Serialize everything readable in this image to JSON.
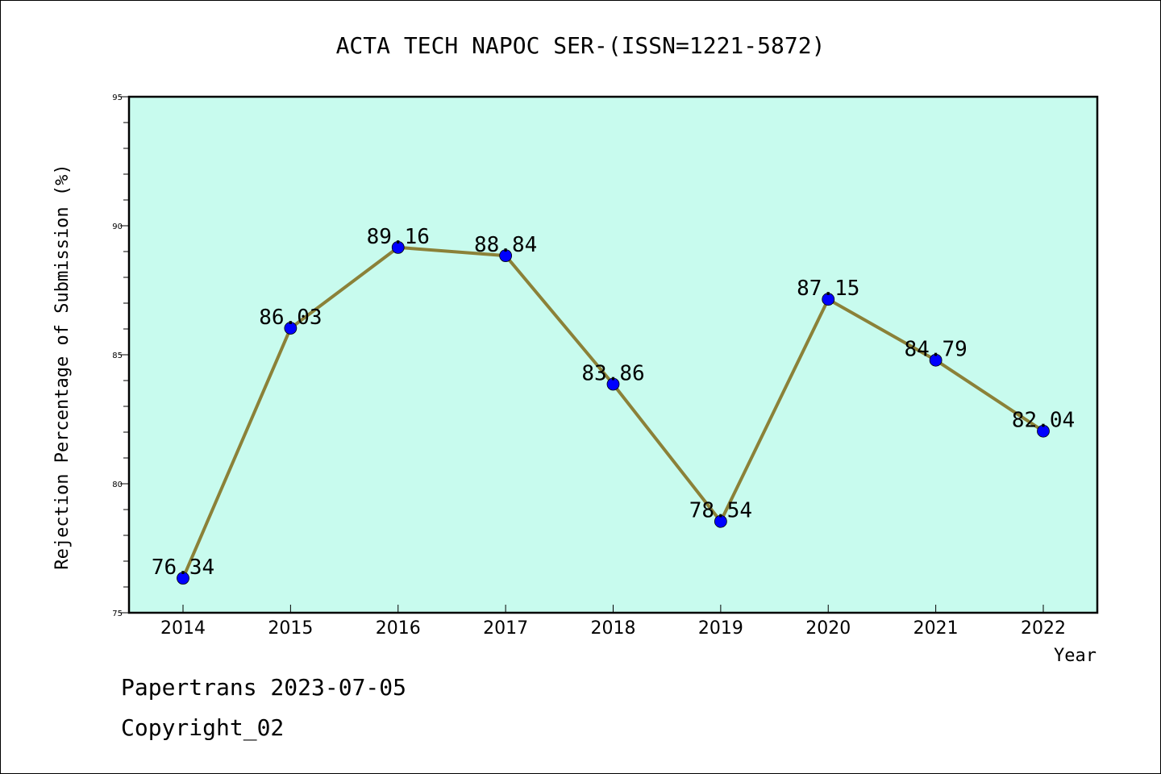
{
  "chart_data": {
    "type": "line",
    "title": "ACTA TECH NAPOC SER-(ISSN=1221-5872)",
    "xlabel": "Year",
    "ylabel": "Rejection Percentage of Submission (%)",
    "categories": [
      "2014",
      "2015",
      "2016",
      "2017",
      "2018",
      "2019",
      "2020",
      "2021",
      "2022"
    ],
    "values": [
      76.34,
      86.03,
      89.16,
      88.84,
      83.86,
      78.54,
      87.15,
      84.79,
      82.04
    ],
    "value_labels": [
      "76.34",
      "86.03",
      "89.16",
      "88.84",
      "83.86",
      "78.54",
      "87.15",
      "84.79",
      "82.04"
    ],
    "ylim": [
      75,
      95
    ],
    "yticks": [
      "75",
      "80",
      "85",
      "90",
      "95"
    ],
    "grid": false,
    "colors": {
      "plot_background": "#c8fbee",
      "line": "#8b8138",
      "marker": "#0000ff"
    }
  },
  "footer": {
    "line1": "Papertrans 2023-07-05",
    "line2": "Copyright_02"
  }
}
